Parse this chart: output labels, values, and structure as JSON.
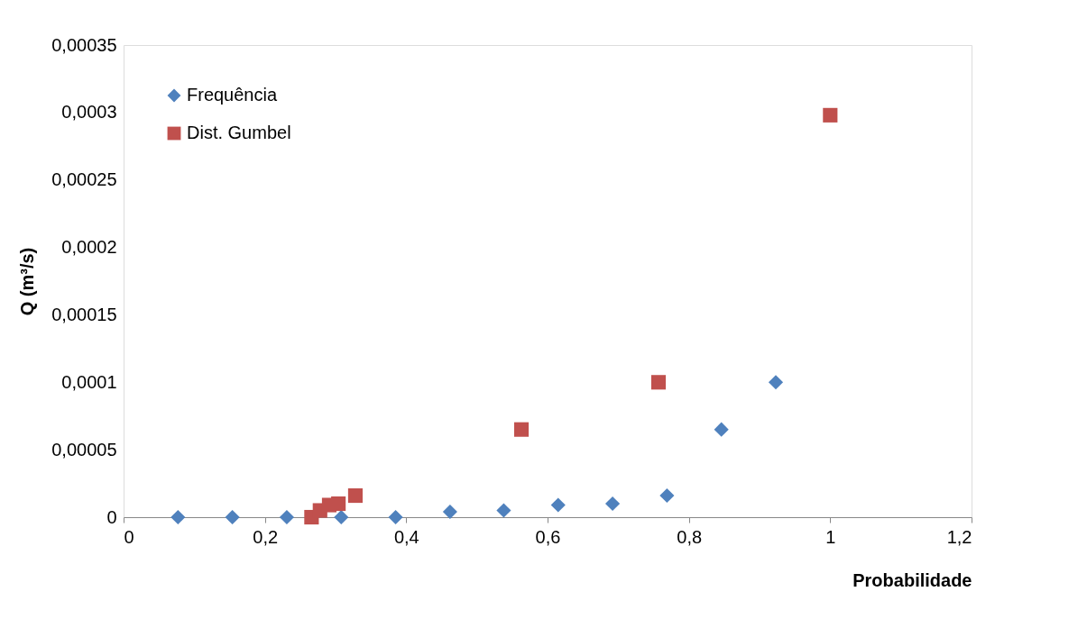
{
  "chart_data": {
    "type": "scatter",
    "xlabel": "Probabilidade",
    "ylabel": "Q (m³/s)",
    "xlim": [
      0,
      1.2
    ],
    "xticks": [
      {
        "value": 0,
        "label": "0"
      },
      {
        "value": 0.2,
        "label": "0,2"
      },
      {
        "value": 0.4,
        "label": "0,4"
      },
      {
        "value": 0.6,
        "label": "0,6"
      },
      {
        "value": 0.8,
        "label": "0,8"
      },
      {
        "value": 1,
        "label": "1"
      },
      {
        "value": 1.2,
        "label": "1,2"
      }
    ],
    "ylim": [
      0,
      0.00035
    ],
    "yticks": [
      {
        "value": 0,
        "label": "0"
      },
      {
        "value": 5e-05,
        "label": "0,00005"
      },
      {
        "value": 0.0001,
        "label": "0,0001"
      },
      {
        "value": 0.00015,
        "label": "0,00015"
      },
      {
        "value": 0.0002,
        "label": "0,0002"
      },
      {
        "value": 0.00025,
        "label": "0,00025"
      },
      {
        "value": 0.0003,
        "label": "0,0003"
      },
      {
        "value": 0.00035,
        "label": "0,00035"
      }
    ],
    "grid": false,
    "legend": "top left",
    "series": [
      {
        "name": "Frequência",
        "color": "#4f81bd",
        "marker": "diamond",
        "x": [
          0.077,
          0.154,
          0.231,
          0.308,
          0.385,
          0.462,
          0.538,
          0.615,
          0.692,
          0.769,
          0.846,
          0.923
        ],
        "values": [
          0,
          0,
          0,
          0,
          0,
          4e-06,
          5e-06,
          9e-06,
          1e-05,
          1.6e-05,
          6.5e-05,
          0.0001
        ]
      },
      {
        "name": "Dist. Gumbel",
        "color": "#c0504d",
        "marker": "square",
        "x": [
          0.266,
          0.278,
          0.291,
          0.304,
          0.328,
          0.563,
          0.757,
          1.0
        ],
        "values": [
          0,
          5e-06,
          9e-06,
          1e-05,
          1.6e-05,
          6.5e-05,
          0.0001,
          0.000298
        ]
      }
    ]
  }
}
